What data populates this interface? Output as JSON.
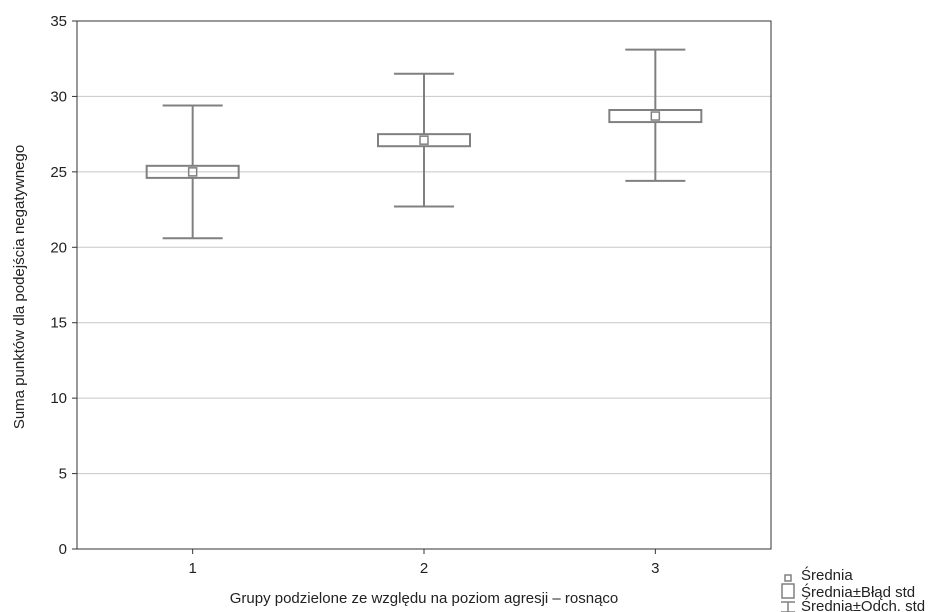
{
  "chart_data": {
    "type": "box",
    "categories": [
      "1",
      "2",
      "3"
    ],
    "mean": [
      25.0,
      27.1,
      28.7
    ],
    "se_low": [
      24.6,
      26.7,
      28.3
    ],
    "se_high": [
      25.4,
      27.5,
      29.1
    ],
    "sd_low": [
      20.6,
      22.7,
      24.4
    ],
    "sd_high": [
      29.4,
      31.5,
      33.1
    ],
    "xlabel": "Grupy podzielone ze względu na poziom agresji – rosnąco",
    "ylabel": "Suma punktów dla podejścia negatywnego",
    "ylim": [
      0,
      35
    ],
    "yticks": [
      0,
      5,
      10,
      15,
      20,
      25,
      30,
      35
    ],
    "grid": true,
    "legend": {
      "position": "bottom-right",
      "entries": [
        "Średnia",
        "Średnia±Błąd std",
        "Średnia±Odch. std"
      ]
    },
    "colors": {
      "marks": "#808080",
      "grid": "#c8c8c8",
      "frame": "#333333"
    }
  }
}
